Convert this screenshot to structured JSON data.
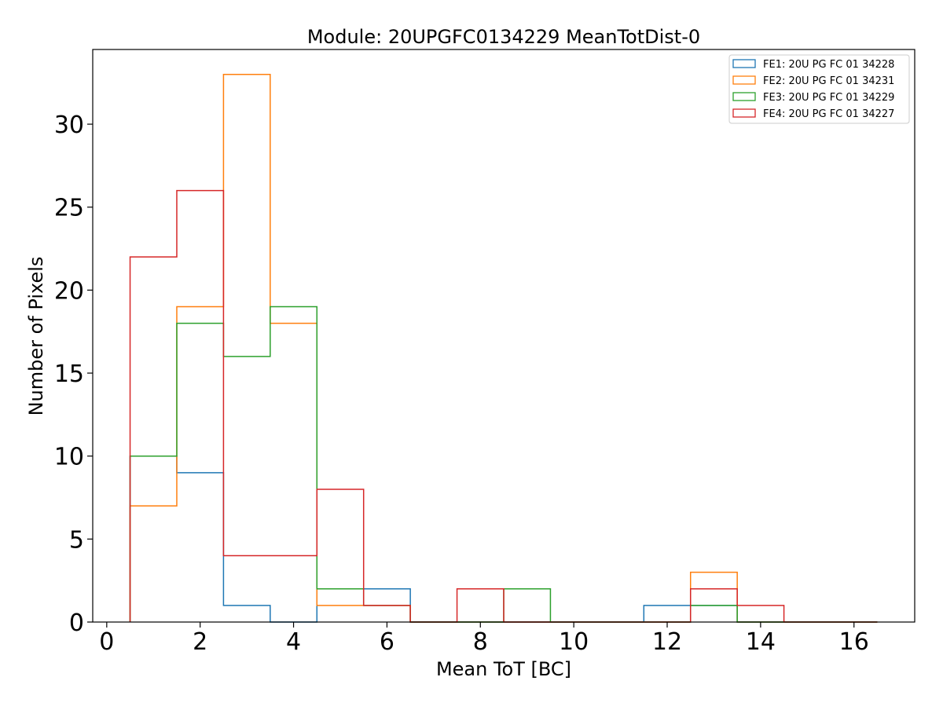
{
  "chart_data": {
    "type": "histogram",
    "title": "Module: 20UPGFC0134229 MeanTotDist-0",
    "xlabel": "Mean ToT [BC]",
    "ylabel": "Number of Pixels",
    "xlim": [
      -0.3,
      17.3
    ],
    "ylim": [
      0,
      34.5
    ],
    "xticks": [
      0,
      2,
      4,
      6,
      8,
      10,
      12,
      14,
      16
    ],
    "yticks": [
      0,
      5,
      10,
      15,
      20,
      25,
      30
    ],
    "bin_edges": [
      0.5,
      1.5,
      2.5,
      3.5,
      4.5,
      5.5,
      6.5,
      7.5,
      8.5,
      9.5,
      10.5,
      11.5,
      12.5,
      13.5,
      14.5,
      15.5,
      16.5
    ],
    "grid": false,
    "legend_position": "top-right",
    "series": [
      {
        "name": "FE1: 20U PG FC 01 34228",
        "color": "#1f77b4",
        "values": [
          10,
          9,
          1,
          0,
          2,
          2,
          0,
          0,
          0,
          0,
          0,
          1,
          1,
          0,
          0,
          0
        ]
      },
      {
        "name": "FE2: 20U PG FC 01 34231",
        "color": "#ff7f0e",
        "values": [
          7,
          19,
          33,
          18,
          1,
          1,
          0,
          0,
          0,
          0,
          0,
          0,
          3,
          0,
          0,
          0
        ]
      },
      {
        "name": "FE3: 20U PG FC 01 34229",
        "color": "#2ca02c",
        "values": [
          10,
          18,
          16,
          19,
          2,
          1,
          0,
          0,
          2,
          0,
          0,
          0,
          1,
          0,
          0,
          0
        ]
      },
      {
        "name": "FE4: 20U PG FC 01 34227",
        "color": "#d62728",
        "values": [
          22,
          26,
          4,
          4,
          8,
          1,
          0,
          2,
          0,
          0,
          0,
          0,
          2,
          1,
          0,
          0
        ]
      }
    ]
  }
}
